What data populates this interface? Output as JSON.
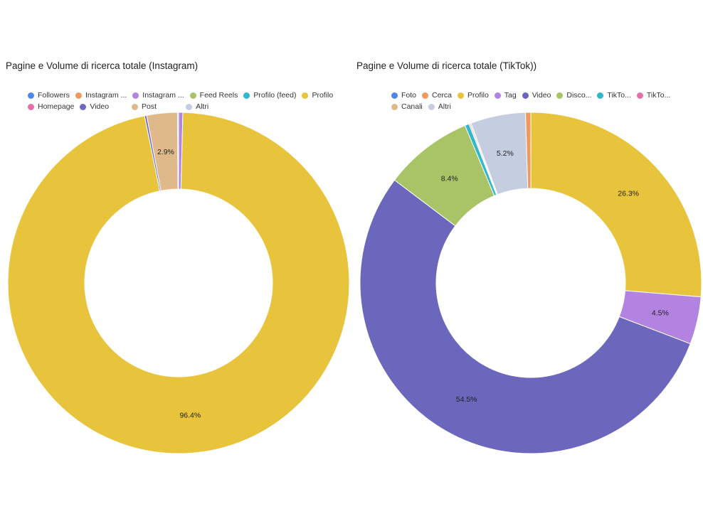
{
  "chart_data": [
    {
      "type": "pie",
      "title": "Pagine e Volume di ricerca totale (Instagram)",
      "legend_placement": "top",
      "legend": [
        {
          "label": "Followers",
          "color": "#4f86e8"
        },
        {
          "label": "Instagram ...",
          "color": "#f0995a"
        },
        {
          "label": "Instagram ...",
          "color": "#b283e0"
        },
        {
          "label": "Feed Reels",
          "color": "#a8c466"
        },
        {
          "label": "Profilo (feed)",
          "color": "#2fb8c9"
        },
        {
          "label": "Profilo",
          "color": "#e8c33c"
        },
        {
          "label": "Homepage",
          "color": "#e46fa9"
        },
        {
          "label": "Video",
          "color": "#6a67bd"
        },
        {
          "label": "Post",
          "color": "#dfb98a"
        },
        {
          "label": "Altri",
          "color": "#c5cde0"
        }
      ],
      "slices": [
        {
          "name": "Instagram ...",
          "value": 0.4,
          "color": "#b283e0",
          "label": ""
        },
        {
          "name": "Profilo",
          "value": 96.4,
          "color": "#e8c33c",
          "label": "96.4%"
        },
        {
          "name": "Video",
          "value": 0.2,
          "color": "#6a67bd",
          "label": ""
        },
        {
          "name": "Post",
          "value": 2.9,
          "color": "#dfb98a",
          "label": "2.9%"
        },
        {
          "name": "Altri",
          "value": 0.1,
          "color": "#c5cde0",
          "label": ""
        }
      ]
    },
    {
      "type": "pie",
      "title": "Pagine e Volume di ricerca totale (TikTok))",
      "legend_placement": "top",
      "legend": [
        {
          "label": "Foto",
          "color": "#4f86e8"
        },
        {
          "label": "Cerca",
          "color": "#f0995a"
        },
        {
          "label": "Profilo",
          "color": "#e8c33c"
        },
        {
          "label": "Tag",
          "color": "#b283e0"
        },
        {
          "label": "Video",
          "color": "#6a67bd"
        },
        {
          "label": "Disco...",
          "color": "#a8c466"
        },
        {
          "label": "TikTo...",
          "color": "#2fb8c9"
        },
        {
          "label": "TikTo...",
          "color": "#e46fa9"
        },
        {
          "label": "Canali",
          "color": "#dfb98a"
        },
        {
          "label": "Altri",
          "color": "#c5cde0"
        }
      ],
      "slices": [
        {
          "name": "Profilo",
          "value": 26.3,
          "color": "#e8c33c",
          "label": "26.3%"
        },
        {
          "name": "Tag",
          "value": 4.5,
          "color": "#b283e0",
          "label": "4.5%"
        },
        {
          "name": "Video",
          "value": 54.5,
          "color": "#6a67bd",
          "label": "54.5%"
        },
        {
          "name": "Disco...",
          "value": 8.4,
          "color": "#a8c466",
          "label": "8.4%"
        },
        {
          "name": "TikTo...",
          "value": 0.4,
          "color": "#2fb8c9",
          "label": ""
        },
        {
          "name": "TikTo...",
          "value": 0.1,
          "color": "#e46fa9",
          "label": ""
        },
        {
          "name": "Canali",
          "value": 0.1,
          "color": "#dfb98a",
          "label": ""
        },
        {
          "name": "Altri",
          "value": 5.2,
          "color": "#c5cde0",
          "label": "5.2%"
        },
        {
          "name": "Cerca",
          "value": 0.5,
          "color": "#f0995a",
          "label": ""
        }
      ]
    }
  ]
}
